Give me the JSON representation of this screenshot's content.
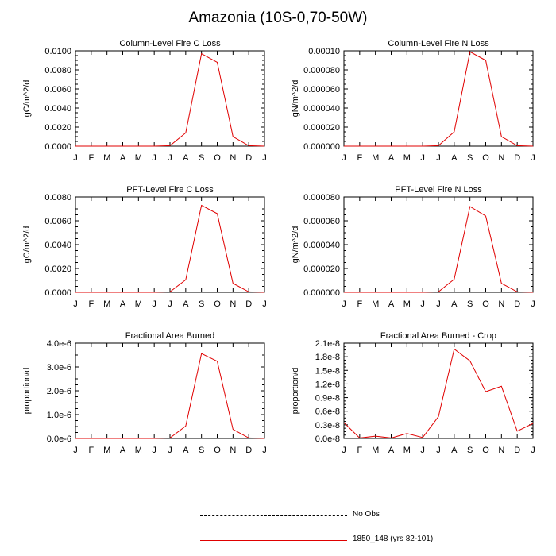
{
  "title": "Amazonia (10S-0,70-50W)",
  "legend": {
    "items": [
      {
        "label": "No Obs",
        "color": "#000000",
        "style": "dashed"
      },
      {
        "label": "1850_148 (yrs 82-101)",
        "color": "#e00000",
        "style": "solid"
      }
    ]
  },
  "chart_data": [
    {
      "type": "line",
      "title": "Column-Level Fire C Loss",
      "xlabel": "",
      "ylabel": "gC/m^2/d",
      "categories": [
        "J",
        "F",
        "M",
        "A",
        "M",
        "J",
        "J",
        "A",
        "S",
        "O",
        "N",
        "D",
        "J"
      ],
      "ylim": [
        0,
        0.01
      ],
      "yticks": [
        0,
        0.002,
        0.004,
        0.006,
        0.008,
        0.01
      ],
      "yticklabels": [
        "0.0000",
        "0.0020",
        "0.0040",
        "0.0060",
        "0.0080",
        "0.0100"
      ],
      "series": [
        {
          "name": "1850_148 (yrs 82-101)",
          "color": "#e00000",
          "values": [
            0,
            0,
            0,
            0,
            0,
            0,
            5e-05,
            0.0014,
            0.0097,
            0.0088,
            0.001,
            5e-05,
            0
          ]
        }
      ]
    },
    {
      "type": "line",
      "title": "Column-Level Fire N Loss",
      "xlabel": "",
      "ylabel": "gN/m^2/d",
      "categories": [
        "J",
        "F",
        "M",
        "A",
        "M",
        "J",
        "J",
        "A",
        "S",
        "O",
        "N",
        "D",
        "J"
      ],
      "ylim": [
        0,
        0.0001
      ],
      "yticks": [
        0,
        2e-05,
        4e-05,
        6e-05,
        8e-05,
        0.0001
      ],
      "yticklabels": [
        "0.000000",
        "0.000020",
        "0.000040",
        "0.000060",
        "0.000080",
        "0.00010"
      ],
      "series": [
        {
          "name": "1850_148 (yrs 82-101)",
          "color": "#e00000",
          "values": [
            0,
            0,
            0,
            0,
            0,
            0,
            5e-07,
            1.5e-05,
            9.9e-05,
            9e-05,
            1e-05,
            5e-07,
            0
          ]
        }
      ]
    },
    {
      "type": "line",
      "title": "PFT-Level Fire C Loss",
      "xlabel": "",
      "ylabel": "gC/m^2/d",
      "categories": [
        "J",
        "F",
        "M",
        "A",
        "M",
        "J",
        "J",
        "A",
        "S",
        "O",
        "N",
        "D",
        "J"
      ],
      "ylim": [
        0,
        0.008
      ],
      "yticks": [
        0,
        0.002,
        0.004,
        0.006,
        0.008
      ],
      "yticklabels": [
        "0.0000",
        "0.0020",
        "0.0040",
        "0.0060",
        "0.0080"
      ],
      "series": [
        {
          "name": "1850_148 (yrs 82-101)",
          "color": "#e00000",
          "values": [
            0,
            0,
            0,
            0,
            0,
            0,
            4e-05,
            0.00105,
            0.0073,
            0.0066,
            0.00075,
            4e-05,
            0
          ]
        }
      ]
    },
    {
      "type": "line",
      "title": "PFT-Level Fire N Loss",
      "xlabel": "",
      "ylabel": "gN/m^2/d",
      "categories": [
        "J",
        "F",
        "M",
        "A",
        "M",
        "J",
        "J",
        "A",
        "S",
        "O",
        "N",
        "D",
        "J"
      ],
      "ylim": [
        0,
        8e-05
      ],
      "yticks": [
        0,
        2e-05,
        4e-05,
        6e-05,
        8e-05
      ],
      "yticklabels": [
        "0.000000",
        "0.000020",
        "0.000040",
        "0.000060",
        "0.000080"
      ],
      "series": [
        {
          "name": "1850_148 (yrs 82-101)",
          "color": "#e00000",
          "values": [
            0,
            0,
            0,
            0,
            0,
            0,
            4e-07,
            1.1e-05,
            7.2e-05,
            6.4e-05,
            7.5e-06,
            4e-07,
            0
          ]
        }
      ]
    },
    {
      "type": "line",
      "title": "Fractional Area Burned",
      "xlabel": "",
      "ylabel": "proportion/d",
      "categories": [
        "J",
        "F",
        "M",
        "A",
        "M",
        "J",
        "J",
        "A",
        "S",
        "O",
        "N",
        "D",
        "J"
      ],
      "ylim": [
        0,
        4e-06
      ],
      "yticks": [
        0,
        1e-06,
        2e-06,
        3e-06,
        4e-06
      ],
      "yticklabels": [
        "0.0e-6",
        "1.0e-6",
        "2.0e-6",
        "3.0e-6",
        "4.0e-6"
      ],
      "series": [
        {
          "name": "1850_148 (yrs 82-101)",
          "color": "#e00000",
          "values": [
            0,
            0,
            0,
            0,
            0,
            0,
            2e-08,
            5.2e-07,
            3.56e-06,
            3.24e-06,
            3.8e-07,
            2e-08,
            0
          ]
        }
      ]
    },
    {
      "type": "line",
      "title": "Fractional Area Burned - Crop",
      "xlabel": "",
      "ylabel": "proportion/d",
      "categories": [
        "J",
        "F",
        "M",
        "A",
        "M",
        "J",
        "J",
        "A",
        "S",
        "O",
        "N",
        "D",
        "J"
      ],
      "ylim": [
        0,
        2.1e-08
      ],
      "yticks": [
        0,
        3e-09,
        6e-09,
        9e-09,
        1.2e-08,
        1.5e-08,
        1.8e-08,
        2.1e-08
      ],
      "yticklabels": [
        "0.0e-8",
        "0.3e-8",
        "0.6e-8",
        "0.9e-8",
        "1.2e-8",
        "1.5e-8",
        "1.8e-8",
        "2.1e-8"
      ],
      "series": [
        {
          "name": "1850_148 (yrs 82-101)",
          "color": "#e00000",
          "values": [
            3.5e-09,
            1e-10,
            5e-10,
            1e-10,
            1.1e-09,
            2e-10,
            4.8e-09,
            1.97e-08,
            1.71e-08,
            1.03e-08,
            1.15e-08,
            1.6e-09,
            3.3e-09
          ]
        }
      ]
    }
  ]
}
